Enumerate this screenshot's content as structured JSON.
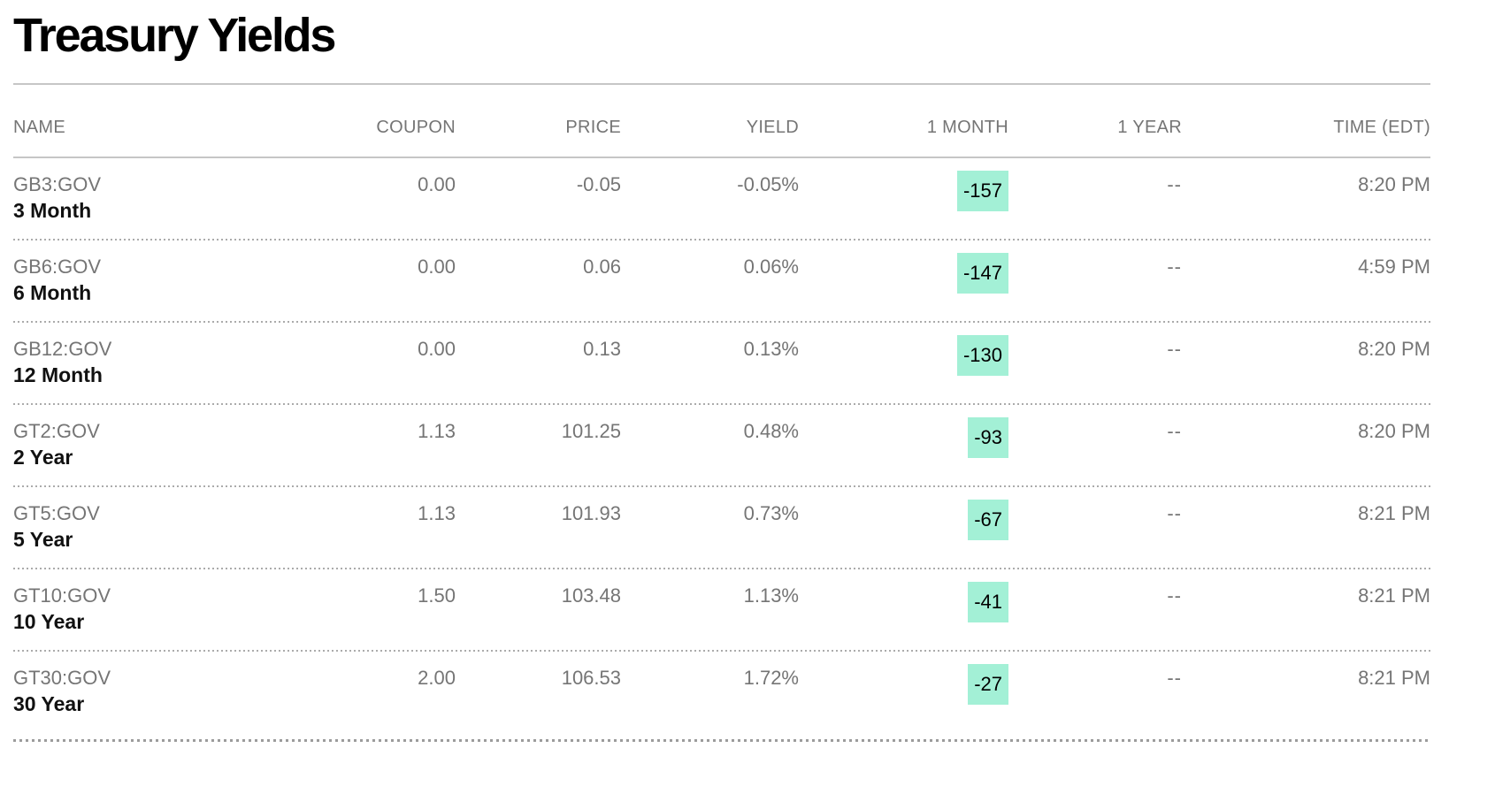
{
  "page": {
    "title": "Treasury Yields"
  },
  "table": {
    "columns": [
      {
        "key": "name",
        "label": "NAME"
      },
      {
        "key": "coupon",
        "label": "COUPON"
      },
      {
        "key": "price",
        "label": "PRICE"
      },
      {
        "key": "yield",
        "label": "YIELD"
      },
      {
        "key": "one_month",
        "label": "1 MONTH"
      },
      {
        "key": "one_year",
        "label": "1 YEAR"
      },
      {
        "key": "time",
        "label": "TIME (EDT)"
      }
    ],
    "rows": [
      {
        "ticker": "GB3:GOV",
        "tenor": "3 Month",
        "coupon": "0.00",
        "price": "-0.05",
        "yield": "-0.05%",
        "one_month": "-157",
        "one_year": "--",
        "time": "8:20 PM"
      },
      {
        "ticker": "GB6:GOV",
        "tenor": "6 Month",
        "coupon": "0.00",
        "price": "0.06",
        "yield": "0.06%",
        "one_month": "-147",
        "one_year": "--",
        "time": "4:59 PM"
      },
      {
        "ticker": "GB12:GOV",
        "tenor": "12 Month",
        "coupon": "0.00",
        "price": "0.13",
        "yield": "0.13%",
        "one_month": "-130",
        "one_year": "--",
        "time": "8:20 PM"
      },
      {
        "ticker": "GT2:GOV",
        "tenor": "2 Year",
        "coupon": "1.13",
        "price": "101.25",
        "yield": "0.48%",
        "one_month": "-93",
        "one_year": "--",
        "time": "8:20 PM"
      },
      {
        "ticker": "GT5:GOV",
        "tenor": "5 Year",
        "coupon": "1.13",
        "price": "101.93",
        "yield": "0.73%",
        "one_month": "-67",
        "one_year": "--",
        "time": "8:21 PM"
      },
      {
        "ticker": "GT10:GOV",
        "tenor": "10 Year",
        "coupon": "1.50",
        "price": "103.48",
        "yield": "1.13%",
        "one_month": "-41",
        "one_year": "--",
        "time": "8:21 PM"
      },
      {
        "ticker": "GT30:GOV",
        "tenor": "30 Year",
        "coupon": "2.00",
        "price": "106.53",
        "yield": "1.72%",
        "one_month": "-27",
        "one_year": "--",
        "time": "8:21 PM"
      }
    ]
  },
  "colors": {
    "highlight_mint": "#a3f0d6",
    "text_primary": "#111111",
    "text_secondary": "#757575",
    "rule_solid": "#c6c6c6",
    "rule_dotted": "#ababab",
    "rule_dotted_bold": "#9c9c9c"
  }
}
